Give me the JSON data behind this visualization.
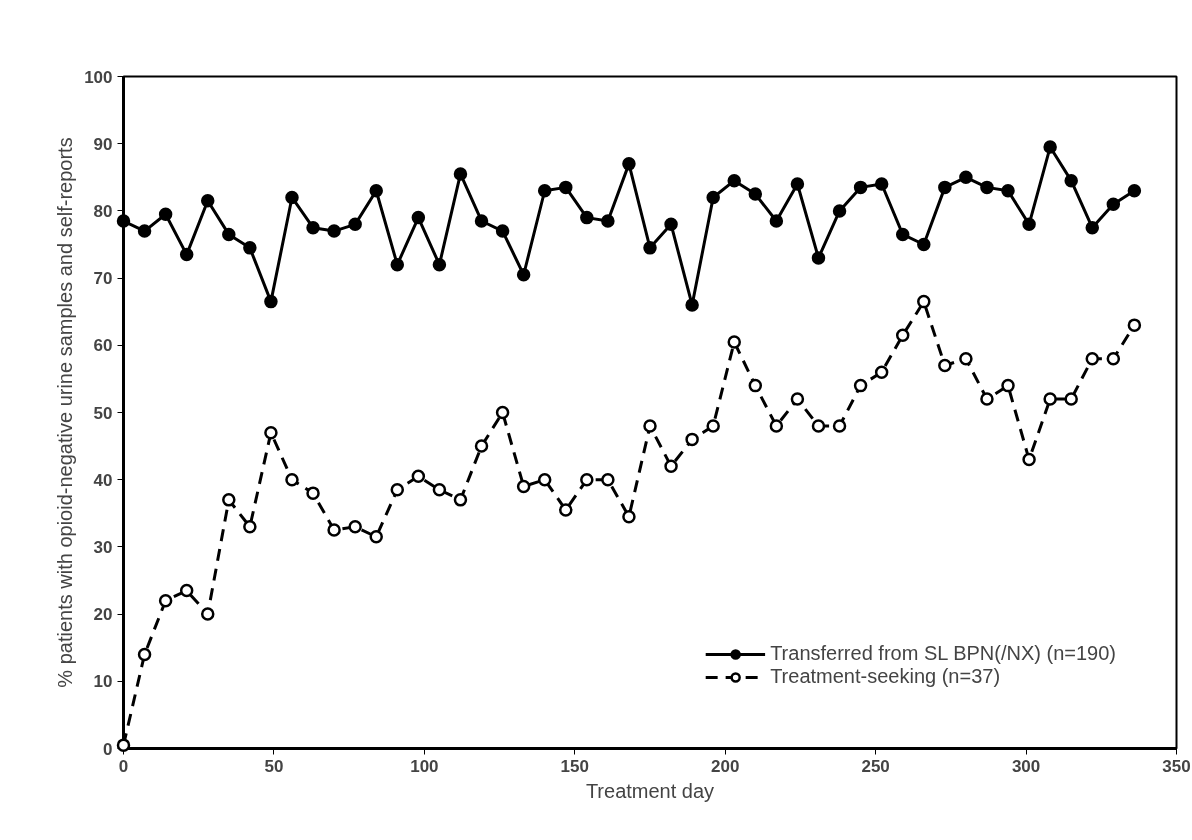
{
  "chart_data": {
    "type": "line",
    "xlabel": "Treatment day",
    "ylabel": "% patients with opioid-negative urine samples and self-reports",
    "x": [
      0,
      7,
      14,
      21,
      28,
      35,
      42,
      49,
      56,
      63,
      70,
      77,
      84,
      91,
      98,
      105,
      112,
      119,
      126,
      133,
      140,
      147,
      154,
      161,
      168,
      175,
      182,
      189,
      196,
      203,
      210,
      217,
      224,
      231,
      238,
      245,
      252,
      259,
      266,
      273,
      280,
      287,
      294,
      301,
      308,
      315,
      322,
      329,
      336
    ],
    "series": [
      {
        "name": "Transferred from SL BPN(/NX) (n=190)",
        "color": "#000000",
        "line_style": "solid",
        "values": [
          78.5,
          77,
          79.5,
          73.5,
          81.5,
          76.5,
          74.5,
          66.5,
          82,
          77.5,
          77,
          78,
          83,
          72,
          79,
          72,
          85.5,
          78.5,
          77,
          70.5,
          83,
          83.5,
          79,
          78.5,
          87,
          74.5,
          78,
          66,
          82,
          84.5,
          82.5,
          78.5,
          84,
          73,
          80,
          83.5,
          84,
          76.5,
          75,
          83.5,
          85,
          83.5,
          83,
          78,
          89.5,
          84.5,
          77.5,
          81,
          83
        ]
      },
      {
        "name": "Treatment-seeking (n=37)",
        "color": "#000000",
        "line_style": "dashed",
        "values": [
          0.5,
          14,
          22,
          23.5,
          20,
          37,
          33,
          47,
          40,
          38,
          32.5,
          33,
          31.5,
          38.5,
          40.5,
          38.5,
          37,
          45,
          50,
          39,
          40,
          35.5,
          40,
          40,
          34.5,
          48,
          42,
          46,
          48,
          60.5,
          54,
          48,
          52,
          48,
          48,
          54,
          56,
          61.5,
          66.5,
          57,
          58,
          52,
          54,
          43,
          52,
          52,
          58,
          58,
          63
        ]
      }
    ],
    "xlim": [
      0,
      350
    ],
    "xticks": [
      0,
      50,
      100,
      150,
      200,
      250,
      300,
      350
    ],
    "ylim": [
      0,
      100
    ],
    "yticks": [
      0,
      10,
      20,
      30,
      40,
      50,
      60,
      70,
      80,
      90,
      100
    ],
    "grid": false,
    "legend": "bottom right",
    "marker": "circle"
  }
}
